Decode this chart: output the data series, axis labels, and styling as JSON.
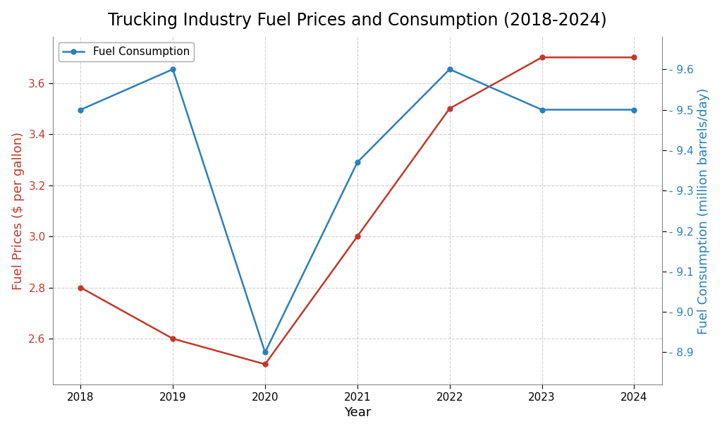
{
  "title": "Trucking Industry Fuel Prices and Consumption (2018-2024)",
  "years": [
    2018,
    2019,
    2020,
    2021,
    2022,
    2023,
    2024
  ],
  "fuel_prices": [
    2.8,
    2.6,
    2.5,
    3.0,
    3.5,
    3.7,
    3.7
  ],
  "fuel_consumption": [
    9.5,
    9.6,
    8.9,
    9.37,
    9.6,
    9.5,
    9.5
  ],
  "price_color": "#c0392b",
  "consumption_color": "#2980b9",
  "xlabel": "Year",
  "ylabel_left": "Fuel Prices ($ per gallon)",
  "ylabel_right": "Fuel Consumption (million barrels/day)",
  "legend_label_consumption": "Fuel Consumption",
  "ylim_left": [
    2.42,
    3.78
  ],
  "ylim_right": [
    8.82,
    9.68
  ],
  "yticks_left": [
    2.6,
    2.8,
    3.0,
    3.2,
    3.4,
    3.6
  ],
  "yticks_right": [
    8.9,
    9.0,
    9.1,
    9.2,
    9.3,
    9.4,
    9.5,
    9.6
  ],
  "background_color": "#ffffff",
  "grid_color": "#bbbbbb",
  "title_fontsize": 17,
  "label_fontsize": 13,
  "tick_fontsize": 11,
  "line_width": 1.8,
  "marker": "o",
  "marker_size": 5
}
